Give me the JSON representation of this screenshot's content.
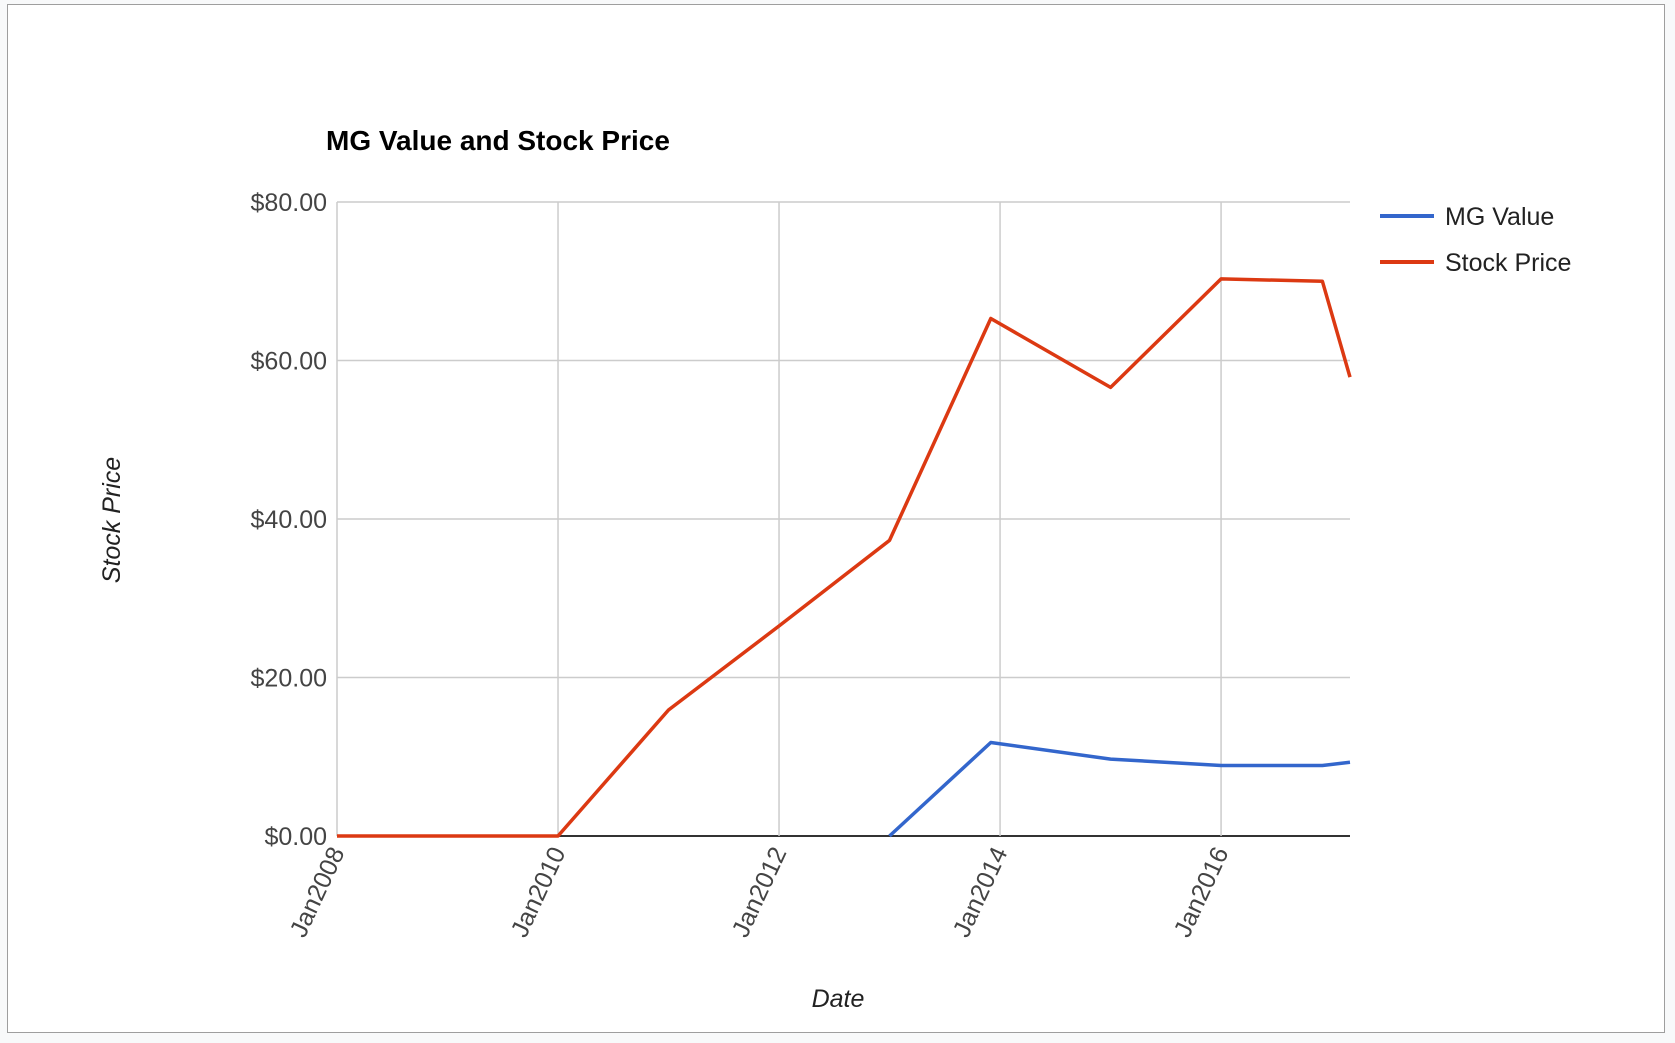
{
  "colors": {
    "mg_value": "#3366cc",
    "stock_price": "#dc3912",
    "gridline": "#cccccc",
    "baseline": "#333333"
  },
  "chart_data": {
    "type": "line",
    "title": "MG Value and Stock Price",
    "xlabel": "Date",
    "ylabel": "Stock Price",
    "x_ticks": [
      "Jan2008",
      "Jan2010",
      "Jan2012",
      "Jan2014",
      "Jan2016"
    ],
    "y_ticks": [
      "$0.00",
      "$20.00",
      "$40.00",
      "$60.00",
      "$80.00"
    ],
    "y_tick_values": [
      0,
      20,
      40,
      60,
      80
    ],
    "xlim": [
      "2008-01",
      "2017-03"
    ],
    "ylim": [
      0,
      80
    ],
    "grid": true,
    "legend_position": "right",
    "series": [
      {
        "name": "MG Value",
        "color_key": "mg_value",
        "points": [
          {
            "x": "2013-01",
            "y": 0
          },
          {
            "x": "2013-12",
            "y": 11.8
          },
          {
            "x": "2015-01",
            "y": 9.7
          },
          {
            "x": "2016-01",
            "y": 8.9
          },
          {
            "x": "2016-12",
            "y": 8.9
          },
          {
            "x": "2017-03",
            "y": 9.3
          }
        ]
      },
      {
        "name": "Stock Price",
        "color_key": "stock_price",
        "points": [
          {
            "x": "2008-01",
            "y": 0
          },
          {
            "x": "2010-01",
            "y": 0
          },
          {
            "x": "2011-01",
            "y": 15.9
          },
          {
            "x": "2012-01",
            "y": 26.5
          },
          {
            "x": "2013-01",
            "y": 37.3
          },
          {
            "x": "2013-12",
            "y": 65.3
          },
          {
            "x": "2015-01",
            "y": 56.6
          },
          {
            "x": "2016-01",
            "y": 70.3
          },
          {
            "x": "2016-12",
            "y": 70.0
          },
          {
            "x": "2017-03",
            "y": 57.9
          }
        ]
      }
    ]
  }
}
